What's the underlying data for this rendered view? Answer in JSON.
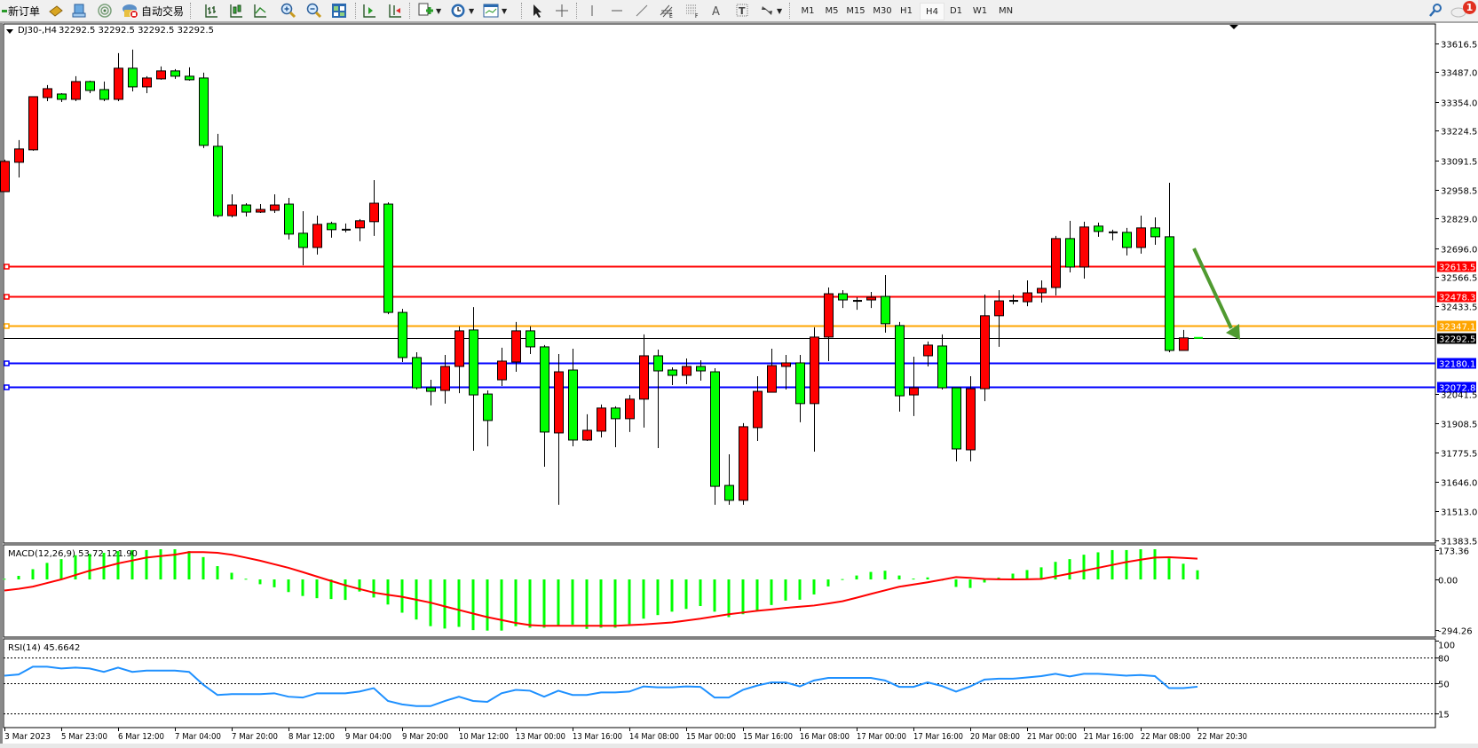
{
  "toolbar": {
    "new_order": "新订单",
    "auto_trading": "自动交易",
    "icons": [
      "metaeditor-icon",
      "terminal-icon",
      "signals-icon",
      "autotrading-icon",
      "bar-chart-icon",
      "candlestick-chart-icon",
      "line-chart-icon",
      "zoom-in-icon",
      "zoom-out-icon",
      "tile-windows-icon",
      "auto-scroll-icon",
      "chart-shift-icon",
      "indicators-icon",
      "periods-clock-icon",
      "templates-icon",
      "cursor-icon",
      "crosshair-icon",
      "vertical-line-icon",
      "horizontal-line-icon",
      "trendline-icon",
      "equidistant-channel-icon",
      "fibonacci-icon",
      "text-icon",
      "text-label-icon",
      "arrows-icon",
      "search-icon",
      "notification-icon"
    ],
    "timeframes": [
      "M1",
      "M5",
      "M15",
      "M30",
      "H1",
      "H4",
      "D1",
      "W1",
      "MN"
    ],
    "active_timeframe": "H4",
    "notification_count": "1"
  },
  "chart": {
    "symbol": "DJ30-,H4",
    "ohlc_text": "32292.5 32292.5 32292.5 32292.5"
  },
  "chart_data": {
    "type": "candlestick",
    "bull_color": "#ff0000",
    "bear_color": "#00ff00",
    "ylim": [
      31370,
      33704
    ],
    "y_ticks": [
      "33616.5",
      "33487.0",
      "33354.0",
      "33224.5",
      "33091.5",
      "32958.5",
      "32829.0",
      "32696.0",
      "32566.5",
      "32433.5",
      "32041.5",
      "31908.5",
      "31775.5",
      "31646.0",
      "31513.0",
      "31383.5"
    ],
    "x_tick_labels": [
      "3 Mar 2023",
      "5 Mar 23:00",
      "6 Mar 12:00",
      "7 Mar 04:00",
      "7 Mar 20:00",
      "8 Mar 12:00",
      "9 Mar 04:00",
      "9 Mar 20:00",
      "10 Mar 12:00",
      "13 Mar 00:00",
      "13 Mar 16:00",
      "14 Mar 08:00",
      "15 Mar 00:00",
      "15 Mar 16:00",
      "16 Mar 08:00",
      "17 Mar 00:00",
      "17 Mar 16:00",
      "20 Mar 08:00",
      "21 Mar 00:00",
      "21 Mar 16:00",
      "22 Mar 08:00",
      "22 Mar 20:30"
    ],
    "candles_ohlc": [
      [
        32950,
        33094,
        32950,
        33086
      ],
      [
        33082,
        33182,
        33014,
        33142
      ],
      [
        33138,
        33377,
        33134,
        33377
      ],
      [
        33373,
        33429,
        33357,
        33413
      ],
      [
        33389,
        33393,
        33353,
        33365
      ],
      [
        33365,
        33469,
        33357,
        33445
      ],
      [
        33445,
        33449,
        33393,
        33405
      ],
      [
        33409,
        33445,
        33357,
        33365
      ],
      [
        33365,
        33573,
        33357,
        33505
      ],
      [
        33505,
        33589,
        33401,
        33421
      ],
      [
        33421,
        33469,
        33393,
        33461
      ],
      [
        33457,
        33513,
        33453,
        33493
      ],
      [
        33493,
        33501,
        33457,
        33469
      ],
      [
        33469,
        33509,
        33449,
        33453
      ],
      [
        33461,
        33485,
        33146,
        33158
      ],
      [
        33154,
        33210,
        32834,
        32842
      ],
      [
        32842,
        32938,
        32834,
        32890
      ],
      [
        32890,
        32898,
        32838,
        32858
      ],
      [
        32858,
        32894,
        32854,
        32870
      ],
      [
        32866,
        32938,
        32854,
        32890
      ],
      [
        32894,
        32922,
        32735,
        32759
      ],
      [
        32763,
        32862,
        32619,
        32699
      ],
      [
        32699,
        32842,
        32667,
        32803
      ],
      [
        32807,
        32815,
        32743,
        32779
      ],
      [
        32779,
        32807,
        32767,
        32779
      ],
      [
        32787,
        32827,
        32727,
        32819
      ],
      [
        32815,
        33002,
        32751,
        32898
      ],
      [
        32894,
        32902,
        32399,
        32407
      ],
      [
        32407,
        32423,
        32184,
        32204
      ],
      [
        32204,
        32228,
        32060,
        32068
      ],
      [
        32068,
        32104,
        31989,
        32052
      ],
      [
        32056,
        32216,
        31997,
        32164
      ],
      [
        32164,
        32344,
        32044,
        32324
      ],
      [
        32328,
        32431,
        31785,
        32036
      ],
      [
        32040,
        32056,
        31805,
        31921
      ],
      [
        32104,
        32248,
        32076,
        32188
      ],
      [
        32184,
        32364,
        32140,
        32324
      ],
      [
        32324,
        32344,
        32220,
        32252
      ],
      [
        32252,
        32260,
        31713,
        31869
      ],
      [
        31865,
        32220,
        31542,
        32140
      ],
      [
        32148,
        32244,
        31805,
        31833
      ],
      [
        31833,
        31949,
        31829,
        31877
      ],
      [
        31873,
        31993,
        31845,
        31977
      ],
      [
        31977,
        31985,
        31801,
        31929
      ],
      [
        31929,
        32036,
        31869,
        32017
      ],
      [
        32017,
        32308,
        31889,
        32212
      ],
      [
        32212,
        32240,
        31797,
        32144
      ],
      [
        32148,
        32160,
        32080,
        32124
      ],
      [
        32124,
        32200,
        32084,
        32164
      ],
      [
        32164,
        32192,
        32100,
        32144
      ],
      [
        32140,
        32156,
        31542,
        31625
      ],
      [
        31629,
        31769,
        31542,
        31562
      ],
      [
        31562,
        31909,
        31542,
        31893
      ],
      [
        31889,
        32120,
        31829,
        32052
      ],
      [
        32048,
        32244,
        32048,
        32168
      ],
      [
        32164,
        32216,
        32060,
        32180
      ],
      [
        32180,
        32216,
        31913,
        31997
      ],
      [
        31997,
        32340,
        31781,
        32296
      ],
      [
        32296,
        32519,
        32188,
        32491
      ],
      [
        32491,
        32507,
        32427,
        32463
      ],
      [
        32459,
        32475,
        32419,
        32459
      ],
      [
        32463,
        32499,
        32427,
        32475
      ],
      [
        32479,
        32575,
        32316,
        32356
      ],
      [
        32348,
        32364,
        31961,
        32032
      ],
      [
        32036,
        32208,
        31941,
        32068
      ],
      [
        32212,
        32276,
        32164,
        32260
      ],
      [
        32256,
        32308,
        32060,
        32068
      ],
      [
        32068,
        32068,
        31737,
        31793
      ],
      [
        31789,
        32120,
        31737,
        32064
      ],
      [
        32064,
        32487,
        32008,
        32392
      ],
      [
        32392,
        32507,
        32252,
        32459
      ],
      [
        32459,
        32487,
        32443,
        32459
      ],
      [
        32455,
        32551,
        32435,
        32495
      ],
      [
        32495,
        32551,
        32451,
        32515
      ],
      [
        32519,
        32751,
        32483,
        32739
      ],
      [
        32739,
        32819,
        32587,
        32611
      ],
      [
        32611,
        32815,
        32559,
        32791
      ],
      [
        32795,
        32811,
        32747,
        32771
      ],
      [
        32767,
        32779,
        32731,
        32767
      ],
      [
        32767,
        32787,
        32663,
        32699
      ],
      [
        32699,
        32842,
        32671,
        32787
      ],
      [
        32787,
        32834,
        32711,
        32747
      ],
      [
        32747,
        32990,
        32228,
        32236
      ],
      [
        32236,
        32328,
        32236,
        32292.5
      ],
      [
        32292.5,
        32292.5,
        32292.5,
        32292.5
      ]
    ],
    "current_price": {
      "value": 32292.5,
      "label": "32292.5",
      "color": "#000000"
    },
    "horizontal_lines": [
      {
        "value": 32613.5,
        "label": "32613.5",
        "color": "#ff0000"
      },
      {
        "value": 32478.3,
        "label": "32478.3",
        "color": "#ff0000"
      },
      {
        "value": 32347.1,
        "label": "32347.1",
        "color": "#ffa500"
      },
      {
        "value": 32180.1,
        "label": "32180.1",
        "color": "#0000ff"
      },
      {
        "value": 32072.8,
        "label": "32072.8",
        "color": "#0000ff"
      }
    ],
    "arrow_annotation": {
      "color": "#4f9a30",
      "direction": "down-right"
    },
    "macd": {
      "label": "MACD(12,26,9) 53.72 121.90",
      "ylim": [
        -338,
        203
      ],
      "y_ticks": [
        "173.36",
        "0.00",
        "-294.26"
      ],
      "histogram_color": "#00ff00",
      "signal_color": "#ff0000",
      "histogram": [
        4,
        21,
        60,
        97,
        119,
        142,
        150,
        156,
        166,
        172,
        172,
        177,
        177,
        166,
        131,
        78,
        39,
        4,
        -28,
        -46,
        -74,
        -97,
        -110,
        -115,
        -120,
        -71,
        -106,
        -147,
        -195,
        -235,
        -274,
        -288,
        -278,
        -297,
        -300,
        -300,
        -274,
        -283,
        -283,
        -274,
        -265,
        -290,
        -283,
        -283,
        -262,
        -230,
        -209,
        -189,
        -173,
        -156,
        -189,
        -221,
        -204,
        -181,
        -150,
        -124,
        -119,
        -88,
        -41,
        2,
        23,
        44,
        51,
        23,
        5,
        12,
        -7,
        -44,
        -50,
        -18,
        11,
        34,
        55,
        71,
        103,
        119,
        145,
        159,
        172,
        172,
        177,
        177,
        124,
        92,
        53.72
      ],
      "signal": [
        -65,
        -55,
        -42,
        -21,
        0,
        26,
        51,
        72,
        94,
        111,
        128,
        137,
        145,
        160,
        160,
        156,
        145,
        128,
        110,
        89,
        68,
        43,
        17,
        -9,
        -34,
        -56,
        -77,
        -90,
        -102,
        -119,
        -136,
        -158,
        -179,
        -200,
        -221,
        -238,
        -255,
        -268,
        -272,
        -272,
        -272,
        -272,
        -272,
        -272,
        -268,
        -264,
        -258,
        -252,
        -241,
        -230,
        -217,
        -204,
        -194,
        -184,
        -176,
        -167,
        -160,
        -153,
        -141,
        -128,
        -107,
        -85,
        -64,
        -43,
        -30,
        -17,
        -2,
        14,
        9,
        3,
        1,
        0,
        1,
        3,
        18,
        34,
        51,
        68,
        85,
        102,
        116,
        128,
        130,
        126,
        121.9
      ]
    },
    "rsi": {
      "label": "RSI(14) 45.6642",
      "ylim": [
        0,
        100
      ],
      "levels": [
        80,
        50,
        15
      ],
      "y_ticks": [
        "100",
        "80",
        "50",
        "15"
      ],
      "color": "#1e90ff",
      "values": [
        58.6,
        60,
        69,
        69,
        67,
        68,
        67,
        63,
        68,
        63,
        64.5,
        64.5,
        64.5,
        63,
        48,
        36,
        37,
        37,
        37,
        38,
        34,
        33,
        38,
        38,
        38,
        40,
        44,
        29,
        25,
        23,
        23,
        29,
        34,
        29,
        28,
        38,
        42,
        41,
        34,
        41,
        36,
        36,
        39,
        39,
        40,
        46,
        45,
        45,
        46,
        45.5,
        33,
        33,
        42,
        47,
        50.7,
        50.7,
        46,
        53,
        56,
        56,
        56,
        56,
        53,
        45.5,
        45.5,
        50.7,
        46.5,
        40,
        46,
        54,
        55,
        55,
        56.5,
        58,
        60.7,
        57.6,
        60.7,
        60.7,
        59.7,
        58.6,
        59.3,
        58,
        44,
        44,
        45.6642
      ]
    }
  }
}
